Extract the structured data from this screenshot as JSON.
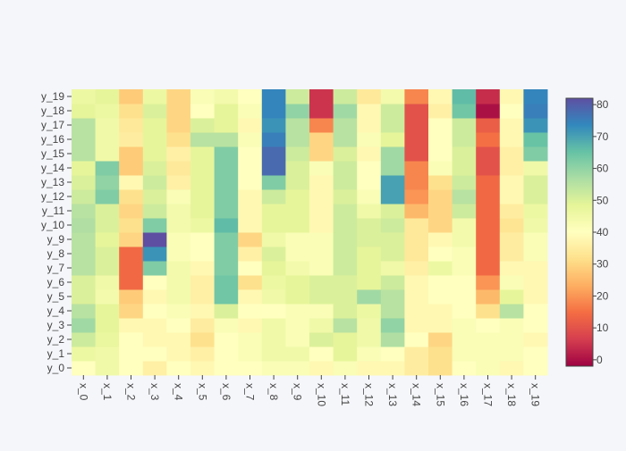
{
  "chart_data": {
    "type": "heatmap",
    "x": [
      "x_0",
      "x_1",
      "x_2",
      "x_3",
      "x_4",
      "x_5",
      "x_6",
      "x_7",
      "x_8",
      "x_9",
      "x_10",
      "x_11",
      "x_12",
      "x_13",
      "x_14",
      "x_15",
      "x_16",
      "x_17",
      "x_18",
      "x_19"
    ],
    "y": [
      "y_0",
      "y_1",
      "y_2",
      "y_3",
      "y_4",
      "y_5",
      "y_6",
      "y_7",
      "y_8",
      "y_9",
      "y_10",
      "y_11",
      "y_12",
      "y_13",
      "y_14",
      "y_15",
      "y_16",
      "y_17",
      "y_18",
      "y_19"
    ],
    "z": [
      [
        40,
        45,
        40,
        36,
        40,
        38,
        40,
        40,
        42,
        42,
        38,
        42,
        38,
        38,
        35,
        32,
        40,
        42,
        38,
        40
      ],
      [
        46,
        45,
        40,
        40,
        38,
        36,
        40,
        42,
        45,
        45,
        40,
        48,
        42,
        40,
        35,
        32,
        42,
        42,
        42,
        40
      ],
      [
        52,
        47,
        40,
        38,
        38,
        32,
        40,
        42,
        45,
        42,
        50,
        48,
        45,
        56,
        40,
        30,
        42,
        42,
        42,
        38
      ],
      [
        58,
        48,
        38,
        38,
        40,
        35,
        42,
        38,
        45,
        42,
        45,
        55,
        45,
        60,
        38,
        38,
        42,
        40,
        42,
        40
      ],
      [
        55,
        48,
        30,
        40,
        42,
        38,
        50,
        40,
        40,
        42,
        42,
        50,
        46,
        55,
        38,
        38,
        40,
        32,
        55,
        40
      ],
      [
        50,
        44,
        28,
        38,
        44,
        36,
        64,
        38,
        45,
        48,
        50,
        50,
        58,
        55,
        38,
        40,
        40,
        25,
        48,
        38
      ],
      [
        50,
        45,
        14,
        40,
        44,
        36,
        64,
        32,
        46,
        48,
        50,
        50,
        48,
        52,
        38,
        40,
        40,
        20,
        42,
        38
      ],
      [
        55,
        50,
        14,
        62,
        44,
        38,
        62,
        40,
        48,
        44,
        42,
        52,
        48,
        45,
        36,
        46,
        42,
        14,
        38,
        38
      ],
      [
        55,
        50,
        14,
        72,
        42,
        40,
        62,
        36,
        50,
        42,
        42,
        52,
        48,
        50,
        34,
        40,
        42,
        14,
        35,
        42
      ],
      [
        55,
        48,
        30,
        82,
        42,
        40,
        62,
        30,
        45,
        42,
        42,
        52,
        50,
        50,
        34,
        38,
        44,
        14,
        35,
        42
      ],
      [
        56,
        50,
        32,
        62,
        44,
        46,
        66,
        38,
        48,
        48,
        38,
        52,
        50,
        52,
        34,
        30,
        44,
        14,
        33,
        45
      ],
      [
        55,
        50,
        30,
        52,
        44,
        48,
        62,
        38,
        48,
        48,
        38,
        52,
        45,
        50,
        25,
        30,
        52,
        14,
        35,
        46
      ],
      [
        52,
        62,
        32,
        50,
        42,
        48,
        62,
        38,
        52,
        48,
        38,
        50,
        42,
        70,
        20,
        30,
        55,
        14,
        38,
        50
      ],
      [
        50,
        60,
        38,
        52,
        36,
        48,
        62,
        40,
        62,
        50,
        38,
        52,
        40,
        70,
        18,
        32,
        52,
        14,
        38,
        50
      ],
      [
        48,
        62,
        28,
        50,
        34,
        48,
        62,
        40,
        78,
        50,
        42,
        52,
        40,
        58,
        18,
        42,
        50,
        10,
        36,
        45
      ],
      [
        55,
        45,
        28,
        48,
        36,
        48,
        62,
        40,
        78,
        52,
        30,
        50,
        38,
        58,
        10,
        40,
        50,
        10,
        36,
        62
      ],
      [
        55,
        45,
        35,
        48,
        32,
        55,
        55,
        42,
        75,
        55,
        30,
        55,
        42,
        48,
        10,
        40,
        52,
        15,
        38,
        65
      ],
      [
        55,
        45,
        34,
        48,
        30,
        50,
        48,
        38,
        72,
        55,
        18,
        55,
        38,
        52,
        10,
        40,
        52,
        12,
        38,
        72
      ],
      [
        48,
        46,
        32,
        50,
        30,
        40,
        48,
        42,
        74,
        60,
        5,
        58,
        38,
        52,
        10,
        36,
        64,
        0,
        40,
        75
      ],
      [
        46,
        48,
        28,
        46,
        30,
        42,
        44,
        40,
        74,
        52,
        5,
        52,
        34,
        44,
        18,
        38,
        66,
        4,
        38,
        74
      ]
    ],
    "zmin": -2,
    "zmax": 82,
    "colorscale": "Spectral",
    "colorbar": {
      "ticks": [
        0,
        10,
        20,
        30,
        40,
        50,
        60,
        70,
        80
      ]
    }
  }
}
